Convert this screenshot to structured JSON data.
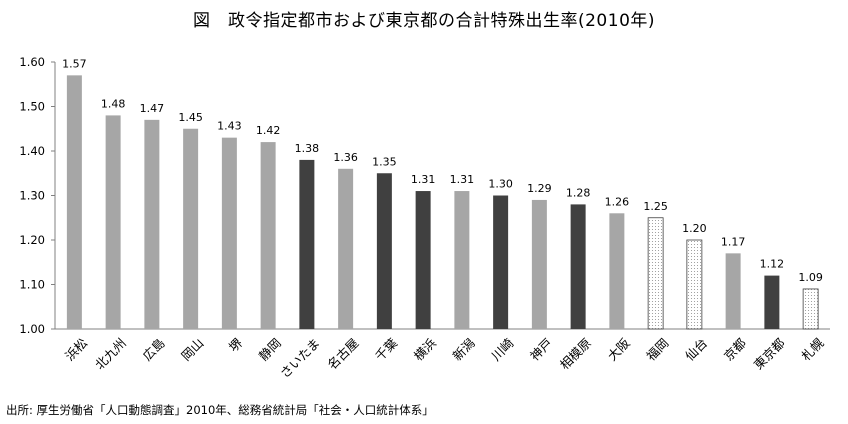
{
  "title": "図　政令指定都市および東京都の合計特殊出生率(2010年)",
  "source": "出所: 厚生労働省「人口動態調査」2010年、総務省統計局「社会・人口統計体系」",
  "chart_data": {
    "type": "bar",
    "title": "図　政令指定都市および東京都の合計特殊出生率(2010年)",
    "xlabel": "",
    "ylabel": "",
    "ylim": [
      1.0,
      1.6
    ],
    "yticks": [
      "1.00",
      "1.10",
      "1.20",
      "1.30",
      "1.40",
      "1.50",
      "1.60"
    ],
    "grid": false,
    "legend": "none",
    "categories": [
      "浜松",
      "北九州",
      "広島",
      "岡山",
      "堺",
      "静岡",
      "さいたま",
      "名古屋",
      "千葉",
      "横浜",
      "新潟",
      "川崎",
      "神戸",
      "相模原",
      "大阪",
      "福岡",
      "仙台",
      "京都",
      "東京都",
      "札幌"
    ],
    "values": [
      1.57,
      1.48,
      1.47,
      1.45,
      1.43,
      1.42,
      1.38,
      1.36,
      1.35,
      1.31,
      1.31,
      1.3,
      1.29,
      1.28,
      1.26,
      1.25,
      1.2,
      1.17,
      1.12,
      1.09
    ],
    "value_labels": [
      "1.57",
      "1.48",
      "1.47",
      "1.45",
      "1.43",
      "1.42",
      "1.38",
      "1.36",
      "1.35",
      "1.31",
      "1.31",
      "1.30",
      "1.29",
      "1.28",
      "1.26",
      "1.25",
      "1.20",
      "1.17",
      "1.12",
      "1.09"
    ],
    "bar_styles": [
      "gray",
      "gray",
      "gray",
      "gray",
      "gray",
      "gray",
      "dark",
      "gray",
      "dark",
      "dark",
      "gray",
      "dark",
      "gray",
      "dark",
      "gray",
      "dotted",
      "dotted",
      "gray",
      "dark",
      "dotted"
    ],
    "colors": {
      "gray": "#a6a6a6",
      "dark": "#404040",
      "dotted_fill": "#ffffff",
      "dotted_dot": "#8c8c8c",
      "axis": "#808080"
    }
  }
}
